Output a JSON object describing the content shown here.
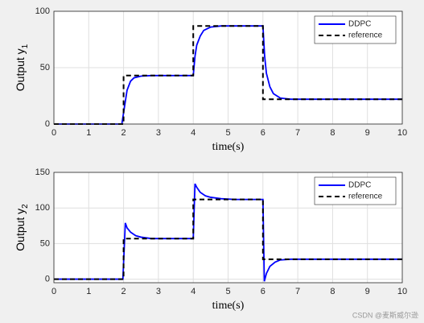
{
  "chart_data": [
    {
      "type": "line",
      "xlabel": "time(s)",
      "ylabel": "Output  y",
      "ylabel_subscript": "1",
      "xlim": [
        0,
        10
      ],
      "xticks": [
        0,
        1,
        2,
        3,
        4,
        5,
        6,
        7,
        8,
        9,
        10
      ],
      "ylim": [
        0,
        100
      ],
      "yticks": [
        0,
        50,
        100
      ],
      "grid": true,
      "legend": "upper-right",
      "series": [
        {
          "name": "DDPC",
          "color": "#0000ff",
          "style": "solid",
          "x": [
            0,
            1.95,
            2.05,
            2.1,
            2.2,
            2.3,
            2.5,
            2.8,
            3.2,
            4,
            4.05,
            4.1,
            4.2,
            4.3,
            4.5,
            4.8,
            5.2,
            6,
            6.05,
            6.1,
            6.2,
            6.3,
            6.5,
            6.8,
            7.2,
            10
          ],
          "values": [
            0,
            0,
            20,
            30,
            38,
            41,
            42.5,
            43,
            43,
            43,
            60,
            70,
            78,
            83,
            86,
            87,
            87,
            87,
            60,
            45,
            33,
            27,
            23,
            22,
            22,
            22
          ]
        },
        {
          "name": "reference",
          "color": "#000000",
          "style": "dashed",
          "x": [
            0,
            2,
            2,
            4,
            4,
            6,
            6,
            10
          ],
          "values": [
            0,
            0,
            43,
            43,
            87,
            87,
            22,
            22
          ]
        }
      ]
    },
    {
      "type": "line",
      "xlabel": "time(s)",
      "ylabel": "Output  y",
      "ylabel_subscript": "2",
      "xlim": [
        0,
        10
      ],
      "xticks": [
        0,
        1,
        2,
        3,
        4,
        5,
        6,
        7,
        8,
        9,
        10
      ],
      "ylim": [
        -5,
        150
      ],
      "yticks": [
        0,
        50,
        100,
        150
      ],
      "grid": true,
      "legend": "upper-right",
      "series": [
        {
          "name": "DDPC",
          "color": "#0000ff",
          "style": "solid",
          "x": [
            0,
            1.98,
            2.05,
            2.1,
            2.2,
            2.35,
            2.5,
            2.8,
            3.2,
            4,
            4.05,
            4.1,
            4.2,
            4.35,
            4.5,
            4.8,
            5.2,
            6,
            6.04,
            6.1,
            6.2,
            6.35,
            6.5,
            6.8,
            7.2,
            10
          ],
          "values": [
            0,
            0,
            79,
            72,
            66,
            61,
            59,
            57,
            57,
            57,
            134,
            129,
            122,
            117,
            115,
            113,
            112,
            112,
            -3,
            8,
            18,
            24,
            27,
            28,
            28,
            28
          ]
        },
        {
          "name": "reference",
          "color": "#000000",
          "style": "dashed",
          "x": [
            0,
            2,
            2,
            4,
            4,
            6,
            6,
            10
          ],
          "values": [
            0,
            0,
            57,
            57,
            112,
            112,
            28,
            28
          ]
        }
      ]
    }
  ],
  "watermark": "CSDN @麦斯威尔逊"
}
